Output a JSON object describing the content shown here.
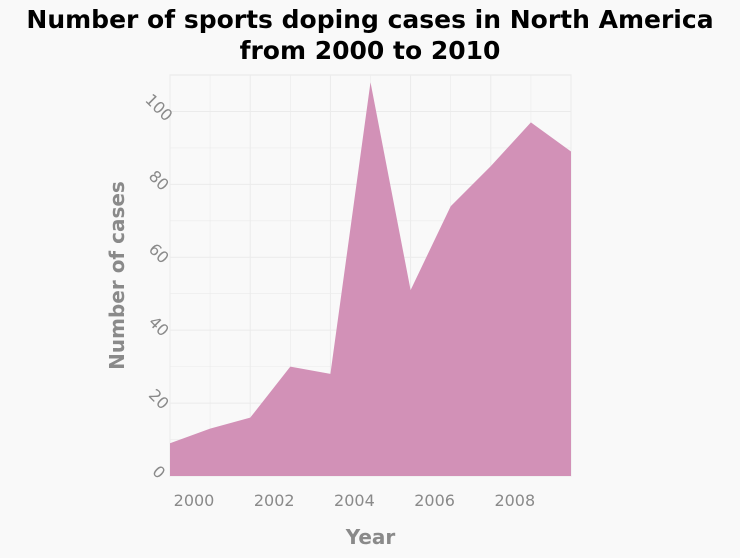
{
  "chart_data": {
    "type": "area",
    "title_lines": [
      "Number of sports doping cases in North America",
      "from 2000 to 2010"
    ],
    "xlabel": "Year",
    "ylabel": "Number of cases",
    "x": [
      2000,
      2001,
      2002,
      2003,
      2004,
      2005,
      2006,
      2007,
      2008,
      2009,
      2010
    ],
    "y": [
      9,
      13,
      16,
      30,
      28,
      108,
      51,
      74,
      85,
      97,
      89
    ],
    "xlim": [
      2000,
      2010
    ],
    "ylim": [
      0,
      110
    ],
    "xticks": [
      2000,
      2002,
      2004,
      2006,
      2008
    ],
    "yticks": [
      0,
      20,
      40,
      60,
      80,
      100
    ],
    "grid": true,
    "fill_color": "#d291b7"
  }
}
